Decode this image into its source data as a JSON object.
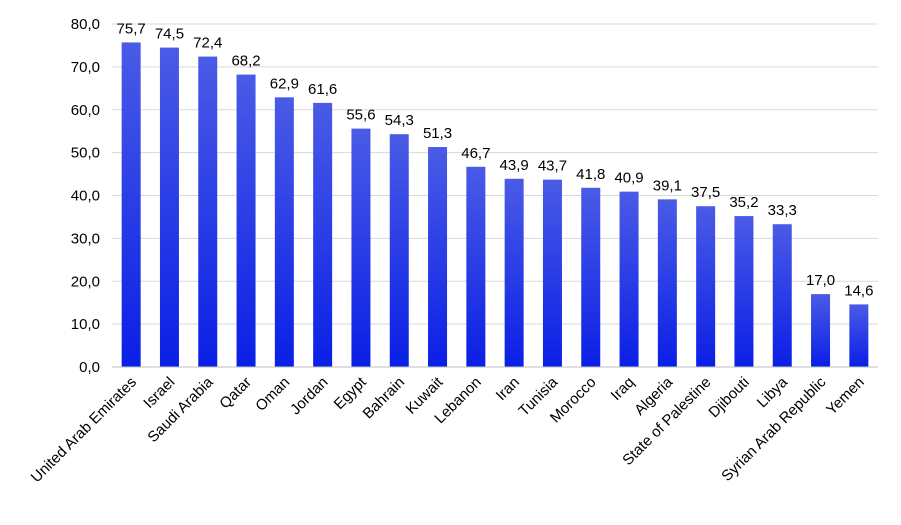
{
  "chart_data": {
    "type": "bar",
    "title": "",
    "xlabel": "",
    "ylabel": "",
    "categories": [
      "United Arab Emirates",
      "Israel",
      "Saudi Arabia",
      "Qatar",
      "Oman",
      "Jordan",
      "Egypt",
      "Bahrain",
      "Kuwait",
      "Lebanon",
      "Iran",
      "Tunisia",
      "Morocco",
      "Iraq",
      "Algeria",
      "State of Palestine",
      "Djibouti",
      "Libya",
      "Syrian Arab Republic",
      "Yemen"
    ],
    "values": [
      75.7,
      74.5,
      72.4,
      68.2,
      62.9,
      61.6,
      55.6,
      54.3,
      51.3,
      46.7,
      43.9,
      43.7,
      41.8,
      40.9,
      39.1,
      37.5,
      35.2,
      33.3,
      17.0,
      14.6
    ],
    "value_labels": [
      "75,7",
      "74,5",
      "72,4",
      "68,2",
      "62,9",
      "61,6",
      "55,6",
      "54,3",
      "51,3",
      "46,7",
      "43,9",
      "43,7",
      "41,8",
      "40,9",
      "39,1",
      "37,5",
      "35,2",
      "33,3",
      "17,0",
      "14,6"
    ],
    "ylim": [
      0,
      80
    ],
    "yticks": [
      0,
      10,
      20,
      30,
      40,
      50,
      60,
      70,
      80
    ],
    "ytick_labels": [
      "0,0",
      "10,0",
      "20,0",
      "30,0",
      "40,0",
      "50,0",
      "60,0",
      "70,0",
      "80,0"
    ],
    "grid": true,
    "legend": "none",
    "colors": {
      "bar_top": "#4a5be6",
      "bar_bottom": "#0a1fe6",
      "grid": "#d9d9d9",
      "axis": "#bfbfbf"
    }
  }
}
